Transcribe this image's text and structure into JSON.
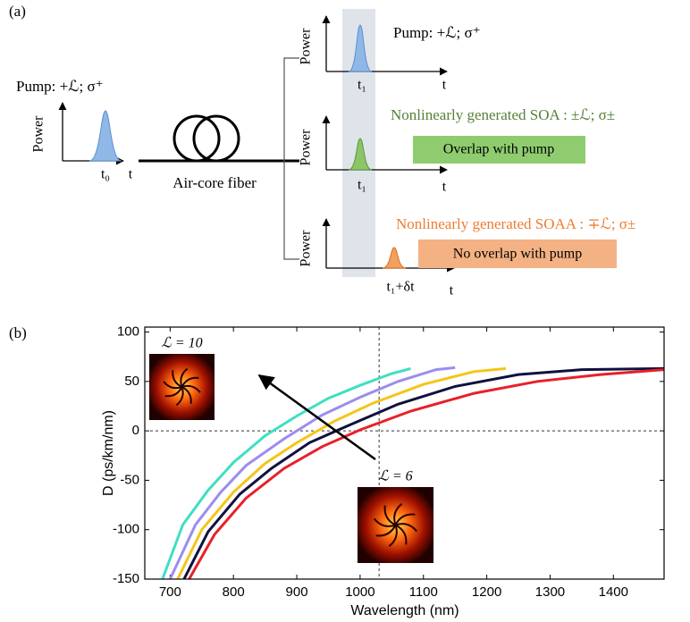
{
  "panel_a": {
    "label": "(a)",
    "input": {
      "pump": "Pump: +ℒ; σ⁺",
      "y_label": "Power",
      "x_label": "t",
      "time": "t₀"
    },
    "fiber": "Air-core fiber",
    "outputs": [
      {
        "y_label": "Power",
        "x_label": "t",
        "time": "t₁",
        "caption": "Pump: +ℒ; σ⁺"
      },
      {
        "y_label": "Power",
        "x_label": "t",
        "time": "t₁",
        "caption": "Nonlinearly generated SOA  :  ±ℒ; σ±",
        "box": "Overlap with pump"
      },
      {
        "y_label": "Power",
        "x_label": "t",
        "time": "t₁+δt",
        "caption": "Nonlinearly generated SOAA : ∓ℒ; σ±",
        "box": "No overlap with pump"
      }
    ]
  },
  "chart_data": {
    "type": "line",
    "panel_label": "(b)",
    "x_label": "Wavelength (nm)",
    "y_label": "D (ps/km/nm)",
    "xlim": [
      660,
      1480
    ],
    "xticks": [
      700,
      800,
      900,
      1000,
      1100,
      1200,
      1300,
      1400
    ],
    "ylim": [
      -150,
      105
    ],
    "yticks": [
      -150,
      -100,
      -50,
      0,
      50,
      100
    ],
    "reference_lines": {
      "x": 1030,
      "y": 0
    },
    "annotations": [
      "ℒ = 10",
      "ℒ = 6"
    ],
    "series": [
      {
        "color": "#3de0c0",
        "x": [
          688,
          720,
          760,
          800,
          850,
          900,
          950,
          1000,
          1050,
          1080
        ],
        "values": [
          -150,
          -95,
          -60,
          -32,
          -5,
          15,
          33,
          46,
          58,
          63
        ]
      },
      {
        "color": "#9b8cf0",
        "x": [
          700,
          740,
          780,
          820,
          880,
          940,
          1000,
          1060,
          1120,
          1150
        ],
        "values": [
          -150,
          -95,
          -62,
          -35,
          -8,
          16,
          34,
          50,
          62,
          64
        ]
      },
      {
        "color": "#f5c518",
        "x": [
          712,
          750,
          800,
          850,
          900,
          960,
          1020,
          1100,
          1180,
          1230
        ],
        "values": [
          -150,
          -100,
          -62,
          -33,
          -12,
          10,
          28,
          47,
          60,
          63
        ]
      },
      {
        "color": "#101040",
        "x": [
          722,
          760,
          810,
          860,
          920,
          980,
          1060,
          1150,
          1250,
          1350,
          1480
        ],
        "values": [
          -150,
          -102,
          -64,
          -38,
          -12,
          5,
          27,
          45,
          57,
          62,
          63
        ]
      },
      {
        "color": "#e8202a",
        "x": [
          730,
          770,
          820,
          880,
          940,
          1000,
          1080,
          1180,
          1280,
          1380,
          1480
        ],
        "values": [
          -150,
          -105,
          -68,
          -38,
          -16,
          1,
          20,
          38,
          50,
          57,
          62
        ]
      }
    ]
  }
}
